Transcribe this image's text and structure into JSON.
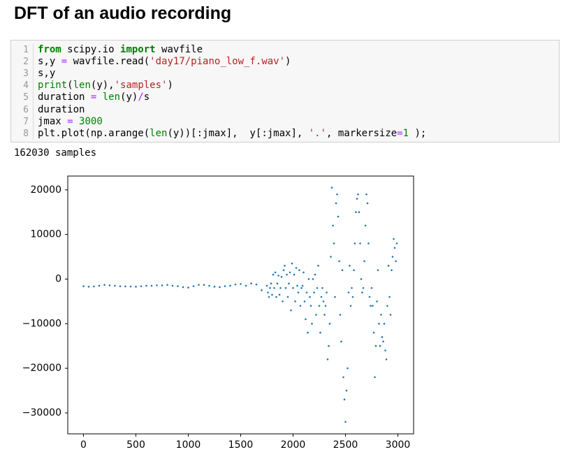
{
  "header": {
    "title": "DFT of an audio recording"
  },
  "code": {
    "line_numbers": [
      1,
      2,
      3,
      4,
      5,
      6,
      7,
      8
    ],
    "lines": [
      [
        {
          "text": "from",
          "style": "kw"
        },
        {
          "text": " scipy.io "
        },
        {
          "text": "import",
          "style": "kw"
        },
        {
          "text": " wavfile"
        }
      ],
      [
        {
          "text": "s,y "
        },
        {
          "text": "=",
          "style": "op"
        },
        {
          "text": " wavfile.read("
        },
        {
          "text": "'day17/piano_low_f.wav'",
          "style": "str"
        },
        {
          "text": ")"
        }
      ],
      [
        {
          "text": "s,y"
        }
      ],
      [
        {
          "text": "print",
          "style": "bi"
        },
        {
          "text": "("
        },
        {
          "text": "len",
          "style": "bi"
        },
        {
          "text": "(y),"
        },
        {
          "text": "'samples'",
          "style": "str"
        },
        {
          "text": ")"
        }
      ],
      [
        {
          "text": "duration "
        },
        {
          "text": "=",
          "style": "op"
        },
        {
          "text": " "
        },
        {
          "text": "len",
          "style": "bi"
        },
        {
          "text": "(y)"
        },
        {
          "text": "/",
          "style": "op"
        },
        {
          "text": "s"
        }
      ],
      [
        {
          "text": "duration"
        }
      ],
      [
        {
          "text": "jmax "
        },
        {
          "text": "=",
          "style": "op"
        },
        {
          "text": " "
        },
        {
          "text": "3000",
          "style": "num"
        }
      ],
      [
        {
          "text": "plt.plot(np.arange("
        },
        {
          "text": "len",
          "style": "bi"
        },
        {
          "text": "(y))[:jmax],  y[:jmax], "
        },
        {
          "text": "'.'",
          "style": "str"
        },
        {
          "text": ", markersize"
        },
        {
          "text": "=",
          "style": "op"
        },
        {
          "text": "1",
          "style": "num"
        },
        {
          "text": " );"
        }
      ]
    ]
  },
  "output": {
    "text": "162030 samples"
  },
  "chart_data": {
    "type": "scatter",
    "color": "#1f77b4",
    "xlim": [
      -150,
      3150
    ],
    "ylim": [
      -34700,
      23100
    ],
    "xticks": [
      0,
      500,
      1000,
      1500,
      2000,
      2500,
      3000
    ],
    "yticks": [
      20000,
      10000,
      0,
      {
        "value": -10000,
        "label": "−10000"
      },
      {
        "value": -20000,
        "label": "−20000"
      },
      {
        "value": -30000,
        "label": "−30000"
      }
    ],
    "x": [
      0,
      50,
      100,
      150,
      200,
      250,
      300,
      350,
      400,
      450,
      500,
      550,
      600,
      650,
      700,
      750,
      800,
      850,
      900,
      950,
      1000,
      1050,
      1100,
      1150,
      1200,
      1250,
      1300,
      1350,
      1400,
      1450,
      1500,
      1550,
      1600,
      1650,
      1700,
      1750,
      1760,
      1770,
      1780,
      1790,
      1800,
      1810,
      1820,
      1830,
      1840,
      1850,
      1860,
      1870,
      1880,
      1890,
      1900,
      1910,
      1920,
      1930,
      1940,
      1950,
      1960,
      1970,
      1980,
      1990,
      2000,
      2010,
      2020,
      2030,
      2040,
      2050,
      2060,
      2070,
      2080,
      2090,
      2100,
      2110,
      2120,
      2130,
      2140,
      2150,
      2160,
      2170,
      2180,
      2190,
      2200,
      2210,
      2220,
      2230,
      2240,
      2250,
      2260,
      2270,
      2280,
      2290,
      2300,
      2310,
      2320,
      2330,
      2340,
      2350,
      2360,
      2370,
      2380,
      2390,
      2400,
      2410,
      2420,
      2430,
      2440,
      2450,
      2460,
      2470,
      2480,
      2490,
      2500,
      2510,
      2520,
      2530,
      2540,
      2550,
      2560,
      2570,
      2580,
      2590,
      2600,
      2610,
      2620,
      2630,
      2640,
      2650,
      2660,
      2670,
      2680,
      2690,
      2700,
      2710,
      2720,
      2730,
      2740,
      2750,
      2760,
      2770,
      2780,
      2790,
      2800,
      2810,
      2820,
      2830,
      2840,
      2850,
      2860,
      2870,
      2880,
      2890,
      2900,
      2910,
      2920,
      2930,
      2940,
      2950,
      2960,
      2970,
      2980,
      2990
    ],
    "values": [
      -1600,
      -1700,
      -1650,
      -1500,
      -1300,
      -1400,
      -1500,
      -1600,
      -1650,
      -1650,
      -1700,
      -1600,
      -1500,
      -1500,
      -1400,
      -1400,
      -1300,
      -1500,
      -1600,
      -1800,
      -1900,
      -1600,
      -1300,
      -1300,
      -1500,
      -1700,
      -1800,
      -1600,
      -1500,
      -1200,
      -1100,
      -1500,
      -1000,
      -1200,
      -2500,
      -1500,
      -3000,
      -4000,
      -2000,
      -1000,
      -3500,
      1000,
      -2000,
      1500,
      -4000,
      -1000,
      800,
      -3500,
      -2000,
      500,
      -5000,
      2000,
      3000,
      -2000,
      1000,
      -4000,
      -1000,
      1500,
      -7000,
      3500,
      -2000,
      1000,
      -5000,
      2500,
      -1500,
      -3000,
      2000,
      -6000,
      -2000,
      -1500,
      1500,
      -5000,
      -9000,
      -3000,
      -12000,
      0,
      -4000,
      -6000,
      -10000,
      0,
      -3000,
      1000,
      -8000,
      -2000,
      3000,
      -6000,
      -12000,
      -4000,
      -2000,
      -5000,
      -8000,
      -6000,
      -3000,
      -18000,
      -15000,
      -10000,
      5000,
      20500,
      12000,
      8000,
      -4000,
      17000,
      19000,
      14000,
      4000,
      -8000,
      -14000,
      2000,
      -22000,
      -27000,
      -32000,
      -25000,
      -20000,
      -3000,
      3000,
      -6000,
      -2000,
      -4000,
      2000,
      8000,
      15000,
      18000,
      19000,
      15000,
      8000,
      0,
      -3000,
      -2000,
      4000,
      12000,
      19000,
      17000,
      8000,
      -4000,
      -6000,
      -2000,
      -6000,
      -12000,
      -22000,
      -15000,
      -5000,
      2000,
      -10000,
      -15000,
      -8000,
      -13000,
      -14000,
      -10000,
      -16000,
      -18000,
      -6000,
      3000,
      -4000,
      -8000,
      2000,
      5000,
      9000,
      7000,
      4000,
      8000
    ]
  }
}
